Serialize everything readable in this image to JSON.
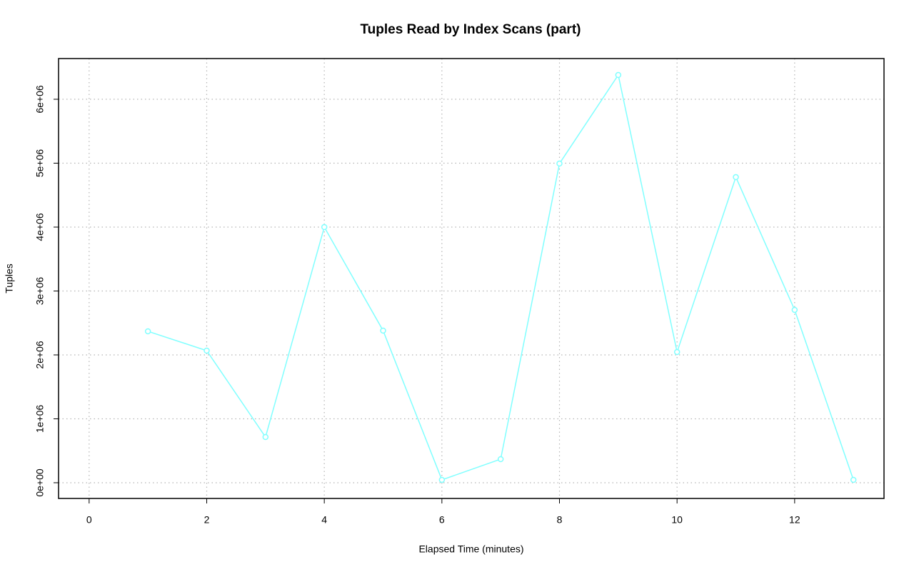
{
  "chart_data": {
    "type": "line",
    "title": "Tuples Read by Index Scans (part)",
    "x_label": "Elapsed Time (minutes)",
    "y_label": "Tuples",
    "x": [
      1,
      2,
      3,
      4,
      5,
      6,
      7,
      8,
      9,
      10,
      11,
      12,
      13
    ],
    "series": [
      {
        "name": "Tuples",
        "color": "#80ffff",
        "values": [
          2369000,
          2067000,
          715000,
          4000000,
          2380000,
          45000,
          369000,
          4994000,
          6380000,
          2045000,
          4782000,
          2704000,
          45000
        ]
      }
    ],
    "xlim": [
      -0.52,
      13.52
    ],
    "xticks": [
      0,
      2,
      4,
      6,
      8,
      10,
      12
    ],
    "ylim": [
      -246000,
      6637000
    ],
    "yticks": [
      {
        "value": 0,
        "label": "0e+00"
      },
      {
        "value": 1000000,
        "label": "1e+06"
      },
      {
        "value": 2000000,
        "label": "2e+06"
      },
      {
        "value": 3000000,
        "label": "3e+06"
      },
      {
        "value": 4000000,
        "label": "4e+06"
      },
      {
        "value": 5000000,
        "label": "5e+06"
      },
      {
        "value": 6000000,
        "label": "6e+06"
      }
    ],
    "grid": true
  }
}
